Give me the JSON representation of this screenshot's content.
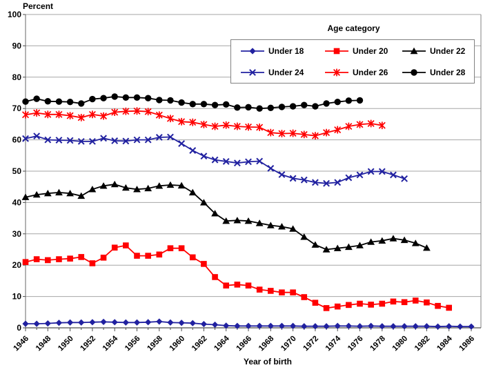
{
  "labels": {
    "y_axis_corner": "Percent",
    "x_axis_title": "Year of birth",
    "legend_title": "Age category"
  },
  "axes": {
    "y_tick_labels": [
      "0",
      "10",
      "20",
      "30",
      "40",
      "50",
      "60",
      "70",
      "80",
      "90",
      "100"
    ],
    "x_tick_labels": [
      "1946",
      "1948",
      "1950",
      "1952",
      "1954",
      "1956",
      "1958",
      "1960",
      "1962",
      "1964",
      "1966",
      "1968",
      "1970",
      "1972",
      "1974",
      "1976",
      "1978",
      "1980",
      "1982",
      "1984",
      "1986"
    ]
  },
  "colors": {
    "navy": "#2121A0",
    "red": "#FF0000",
    "black": "#000000",
    "gridline": "#A6A6A6",
    "axis_frame": "#808080",
    "axis_bottom": "#4D4D4D"
  },
  "chart_data": {
    "type": "line",
    "title": "",
    "xlabel": "Year of birth",
    "ylabel": "Percent",
    "x_start": 1946,
    "x_end": 1986,
    "x_label_step": 2,
    "ylim": [
      0,
      100
    ],
    "y_step": 10,
    "grid": true,
    "legend_position": "top-right-box",
    "series": [
      {
        "name": "Under 18",
        "color": "#2121A0",
        "marker": "diamond",
        "start_year": 1946,
        "values": [
          1.3,
          1.3,
          1.4,
          1.6,
          1.7,
          1.7,
          1.8,
          1.9,
          1.8,
          1.7,
          1.7,
          1.8,
          2.0,
          1.7,
          1.6,
          1.5,
          1.2,
          1.0,
          0.7,
          0.6,
          0.6,
          0.6,
          0.6,
          0.6,
          0.6,
          0.5,
          0.5,
          0.5,
          0.6,
          0.6,
          0.5,
          0.6,
          0.5,
          0.5,
          0.5,
          0.5,
          0.5,
          0.4,
          0.5,
          0.4,
          0.4
        ]
      },
      {
        "name": "Under 20",
        "color": "#FF0000",
        "marker": "square",
        "start_year": 1946,
        "values": [
          21.0,
          21.9,
          21.6,
          21.9,
          22.1,
          22.6,
          20.6,
          22.4,
          25.6,
          26.3,
          23.0,
          23.0,
          23.4,
          25.4,
          25.4,
          22.5,
          20.4,
          16.2,
          13.5,
          13.8,
          13.5,
          12.2,
          11.8,
          11.3,
          11.3,
          9.8,
          8.0,
          6.3,
          6.8,
          7.3,
          7.7,
          7.4,
          7.7,
          8.4,
          8.2,
          8.7,
          8.1,
          7.0,
          6.4
        ]
      },
      {
        "name": "Under 22",
        "color": "#000000",
        "marker": "triangle",
        "start_year": 1946,
        "values": [
          41.7,
          42.5,
          42.9,
          43.2,
          42.9,
          42.1,
          44.2,
          45.3,
          45.8,
          44.7,
          44.2,
          44.5,
          45.3,
          45.6,
          45.4,
          43.2,
          40.0,
          36.5,
          34.1,
          34.3,
          34.1,
          33.4,
          32.7,
          32.3,
          31.6,
          29.0,
          26.5,
          25.0,
          25.4,
          25.8,
          26.3,
          27.4,
          27.8,
          28.5,
          28.0,
          27.0,
          25.5
        ]
      },
      {
        "name": "Under 24",
        "color": "#2121A0",
        "marker": "x",
        "start_year": 1946,
        "values": [
          60.4,
          61.2,
          60.0,
          59.9,
          59.8,
          59.5,
          59.5,
          60.5,
          59.7,
          59.6,
          60.0,
          60.0,
          60.8,
          60.9,
          58.8,
          56.6,
          54.8,
          53.6,
          53.1,
          52.6,
          53.0,
          53.2,
          50.9,
          48.9,
          47.7,
          47.2,
          46.4,
          46.1,
          46.4,
          47.9,
          48.8,
          49.9,
          49.9,
          48.8,
          47.6
        ]
      },
      {
        "name": "Under 26",
        "color": "#FF0000",
        "marker": "star",
        "start_year": 1946,
        "values": [
          68.0,
          68.6,
          68.1,
          68.1,
          67.7,
          67.1,
          68.1,
          67.6,
          68.8,
          69.1,
          69.2,
          69.0,
          67.9,
          66.8,
          65.8,
          65.6,
          64.9,
          64.3,
          64.7,
          64.3,
          64.1,
          64.0,
          62.3,
          62.0,
          62.1,
          61.7,
          61.3,
          62.3,
          63.2,
          64.3,
          64.9,
          65.2,
          64.6
        ]
      },
      {
        "name": "Under 28",
        "color": "#000000",
        "marker": "circle",
        "start_year": 1946,
        "values": [
          72.2,
          73.1,
          72.3,
          72.2,
          72.1,
          71.6,
          73.0,
          73.3,
          73.8,
          73.5,
          73.5,
          73.3,
          72.7,
          72.6,
          71.9,
          71.4,
          71.4,
          71.1,
          71.3,
          70.3,
          70.4,
          70.0,
          70.2,
          70.5,
          70.7,
          71.1,
          70.7,
          71.6,
          72.1,
          72.5,
          72.6
        ]
      }
    ]
  }
}
